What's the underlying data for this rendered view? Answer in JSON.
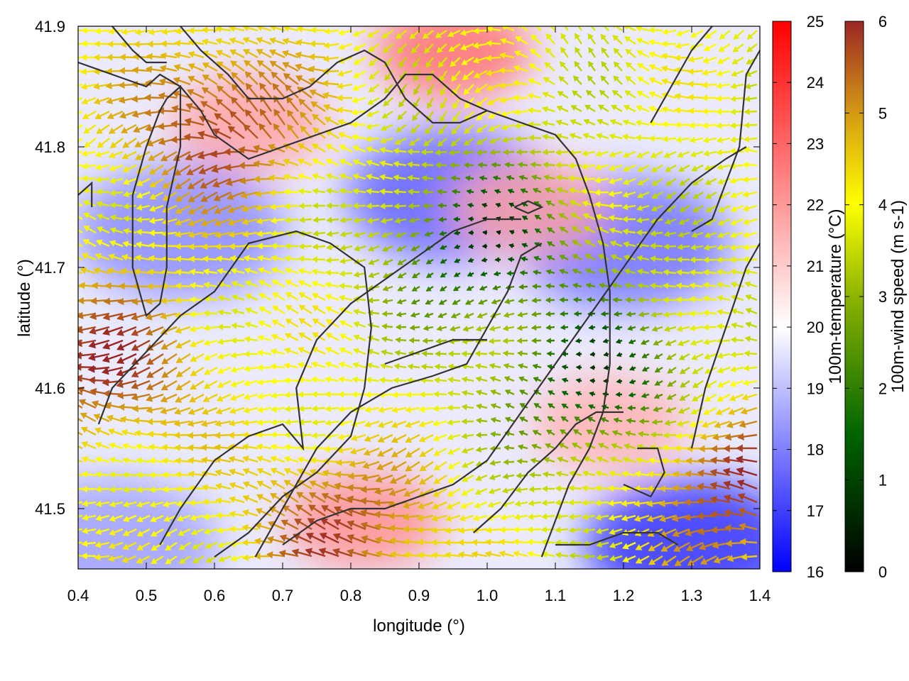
{
  "chart_data": {
    "type": "heatmap",
    "title": "",
    "xlabel": "longitude (°)",
    "ylabel": "latitude (°)",
    "xlim": [
      0.4,
      1.4
    ],
    "ylim": [
      41.45,
      41.9
    ],
    "x_ticks": [
      "0.4",
      "0.5",
      "0.6",
      "0.7",
      "0.8",
      "0.9",
      "1.0",
      "1.1",
      "1.2",
      "1.3",
      "1.4"
    ],
    "y_ticks": [
      "41.5",
      "41.6",
      "41.7",
      "41.8",
      "41.9"
    ],
    "grid": false,
    "layers": [
      "temperature field (background color)",
      "wind vectors (arrows colored by speed)",
      "coastline/terrain contours (dark lines)"
    ],
    "colorbars": [
      {
        "label": "100m-temperature (°C)",
        "range": [
          16,
          25
        ],
        "ticks": [
          "16",
          "17",
          "18",
          "19",
          "20",
          "21",
          "22",
          "23",
          "24",
          "25"
        ],
        "colors": [
          "#0000ff",
          "#ffffff",
          "#ff0000"
        ]
      },
      {
        "label": "100m-wind speed (m s-1)",
        "range": [
          0,
          6
        ],
        "ticks": [
          "0",
          "1",
          "2",
          "3",
          "4",
          "5",
          "6"
        ],
        "colors": [
          "#000000",
          "#006400",
          "#8cb400",
          "#ffff00",
          "#d49a14",
          "#9b2626"
        ]
      }
    ],
    "temperature_features": [
      {
        "kind": "cool",
        "lon": 0.95,
        "lat": 41.76,
        "value": 17.5
      },
      {
        "kind": "cool",
        "lon": 1.2,
        "lat": 41.72,
        "value": 17.8
      },
      {
        "kind": "cool",
        "lon": 0.55,
        "lat": 41.73,
        "value": 18.2
      },
      {
        "kind": "cool",
        "lon": 1.3,
        "lat": 41.47,
        "value": 16.8
      },
      {
        "kind": "cool",
        "lon": 0.45,
        "lat": 41.47,
        "value": 18.5
      },
      {
        "kind": "warm",
        "lon": 0.95,
        "lat": 41.88,
        "value": 22.8
      },
      {
        "kind": "warm",
        "lon": 0.65,
        "lat": 41.82,
        "value": 21.8
      },
      {
        "kind": "warm",
        "lon": 1.18,
        "lat": 41.57,
        "value": 21.5
      },
      {
        "kind": "warm",
        "lon": 0.82,
        "lat": 41.49,
        "value": 22.2
      },
      {
        "kind": "warm",
        "lon": 1.06,
        "lat": 41.75,
        "value": 21.8
      }
    ],
    "wind_features": [
      {
        "kind": "calm",
        "lon": 1.0,
        "lat": 41.72,
        "speed": 0.8
      },
      {
        "kind": "calm",
        "lon": 1.18,
        "lat": 41.6,
        "speed": 0.6
      },
      {
        "kind": "strong",
        "lon": 0.45,
        "lat": 41.62,
        "speed": 5.8
      },
      {
        "kind": "strong",
        "lon": 0.62,
        "lat": 41.82,
        "speed": 5.8
      },
      {
        "kind": "strong",
        "lon": 1.38,
        "lat": 41.52,
        "speed": 5.8
      },
      {
        "kind": "strong",
        "lon": 0.8,
        "lat": 41.48,
        "speed": 5.6
      }
    ],
    "contours": [
      [
        [
          0.4,
          41.76
        ],
        [
          0.42,
          41.77
        ],
        [
          0.42,
          41.75
        ]
      ],
      [
        [
          0.4,
          41.87
        ],
        [
          0.45,
          41.86
        ],
        [
          0.5,
          41.85
        ],
        [
          0.52,
          41.86
        ],
        [
          0.55,
          41.85
        ],
        [
          0.58,
          41.83
        ],
        [
          0.6,
          41.81
        ],
        [
          0.65,
          41.79
        ],
        [
          0.7,
          41.8
        ],
        [
          0.75,
          41.81
        ],
        [
          0.8,
          41.82
        ],
        [
          0.85,
          41.84
        ],
        [
          0.88,
          41.86
        ],
        [
          0.92,
          41.86
        ],
        [
          0.96,
          41.84
        ],
        [
          1.0,
          41.83
        ],
        [
          1.05,
          41.82
        ],
        [
          1.1,
          41.81
        ],
        [
          1.13,
          41.79
        ],
        [
          1.15,
          41.76
        ],
        [
          1.17,
          41.72
        ],
        [
          1.18,
          41.68
        ],
        [
          1.18,
          41.62
        ],
        [
          1.17,
          41.58
        ],
        [
          1.15,
          41.55
        ],
        [
          1.12,
          41.52
        ],
        [
          1.1,
          41.49
        ],
        [
          1.08,
          41.46
        ]
      ],
      [
        [
          0.45,
          41.9
        ],
        [
          0.48,
          41.88
        ],
        [
          0.5,
          41.87
        ],
        [
          0.53,
          41.87
        ]
      ],
      [
        [
          0.55,
          41.9
        ],
        [
          0.58,
          41.88
        ],
        [
          0.62,
          41.86
        ],
        [
          0.65,
          41.84
        ],
        [
          0.7,
          41.84
        ],
        [
          0.74,
          41.85
        ],
        [
          0.78,
          41.87
        ],
        [
          0.82,
          41.88
        ],
        [
          0.85,
          41.87
        ],
        [
          0.88,
          41.84
        ],
        [
          0.92,
          41.82
        ],
        [
          0.96,
          41.82
        ],
        [
          1.0,
          41.83
        ]
      ],
      [
        [
          0.53,
          41.84
        ],
        [
          0.55,
          41.85
        ],
        [
          0.55,
          41.8
        ],
        [
          0.53,
          41.75
        ],
        [
          0.53,
          41.7
        ],
        [
          0.52,
          41.67
        ],
        [
          0.5,
          41.66
        ],
        [
          0.48,
          41.7
        ],
        [
          0.48,
          41.76
        ],
        [
          0.5,
          41.8
        ],
        [
          0.52,
          41.83
        ],
        [
          0.53,
          41.84
        ]
      ],
      [
        [
          0.43,
          41.57
        ],
        [
          0.45,
          41.6
        ],
        [
          0.5,
          41.63
        ],
        [
          0.55,
          41.66
        ],
        [
          0.6,
          41.68
        ],
        [
          0.65,
          41.72
        ],
        [
          0.72,
          41.73
        ],
        [
          0.77,
          41.72
        ],
        [
          0.82,
          41.7
        ],
        [
          0.83,
          41.65
        ],
        [
          0.82,
          41.6
        ],
        [
          0.8,
          41.56
        ],
        [
          0.75,
          41.53
        ],
        [
          0.7,
          41.51
        ],
        [
          0.65,
          41.48
        ],
        [
          0.6,
          41.46
        ]
      ],
      [
        [
          0.52,
          41.47
        ],
        [
          0.55,
          41.5
        ],
        [
          0.6,
          41.54
        ],
        [
          0.65,
          41.56
        ],
        [
          0.7,
          41.57
        ],
        [
          0.73,
          41.55
        ],
        [
          0.72,
          41.6
        ],
        [
          0.75,
          41.64
        ],
        [
          0.8,
          41.67
        ],
        [
          0.85,
          41.69
        ],
        [
          0.9,
          41.71
        ],
        [
          0.95,
          41.73
        ],
        [
          1.0,
          41.74
        ],
        [
          1.05,
          41.74
        ]
      ],
      [
        [
          0.66,
          41.46
        ],
        [
          0.7,
          41.5
        ],
        [
          0.75,
          41.55
        ],
        [
          0.8,
          41.58
        ],
        [
          0.86,
          41.6
        ],
        [
          0.92,
          41.61
        ],
        [
          0.97,
          41.62
        ],
        [
          1.0,
          41.65
        ],
        [
          1.03,
          41.68
        ],
        [
          1.05,
          41.71
        ],
        [
          1.08,
          41.72
        ]
      ],
      [
        [
          0.7,
          41.47
        ],
        [
          0.75,
          41.49
        ],
        [
          0.8,
          41.5
        ],
        [
          0.85,
          41.5
        ],
        [
          0.9,
          41.51
        ],
        [
          0.95,
          41.52
        ],
        [
          1.0,
          41.54
        ],
        [
          1.05,
          41.58
        ],
        [
          1.1,
          41.62
        ],
        [
          1.15,
          41.66
        ],
        [
          1.2,
          41.7
        ],
        [
          1.25,
          41.74
        ],
        [
          1.3,
          41.77
        ],
        [
          1.35,
          41.79
        ],
        [
          1.38,
          41.8
        ]
      ],
      [
        [
          0.98,
          41.48
        ],
        [
          1.02,
          41.5
        ],
        [
          1.06,
          41.53
        ],
        [
          1.1,
          41.55
        ],
        [
          1.13,
          41.57
        ],
        [
          1.16,
          41.58
        ],
        [
          1.2,
          41.58
        ]
      ],
      [
        [
          1.2,
          41.52
        ],
        [
          1.24,
          41.51
        ],
        [
          1.26,
          41.53
        ],
        [
          1.25,
          41.55
        ],
        [
          1.22,
          41.55
        ]
      ],
      [
        [
          1.1,
          41.47
        ],
        [
          1.15,
          41.47
        ],
        [
          1.2,
          41.48
        ],
        [
          1.25,
          41.48
        ],
        [
          1.28,
          41.47
        ]
      ],
      [
        [
          1.3,
          41.55
        ],
        [
          1.32,
          41.6
        ],
        [
          1.35,
          41.65
        ],
        [
          1.38,
          41.7
        ],
        [
          1.4,
          41.72
        ]
      ],
      [
        [
          1.3,
          41.73
        ],
        [
          1.33,
          41.74
        ],
        [
          1.35,
          41.77
        ],
        [
          1.37,
          41.8
        ],
        [
          1.38,
          41.86
        ],
        [
          1.4,
          41.88
        ]
      ],
      [
        [
          1.04,
          41.75
        ],
        [
          1.06,
          41.755
        ],
        [
          1.08,
          41.75
        ],
        [
          1.06,
          41.745
        ],
        [
          1.04,
          41.75
        ]
      ],
      [
        [
          1.24,
          41.82
        ],
        [
          1.27,
          41.85
        ],
        [
          1.3,
          41.88
        ],
        [
          1.33,
          41.9
        ]
      ],
      [
        [
          0.85,
          41.62
        ],
        [
          0.9,
          41.63
        ],
        [
          0.95,
          41.64
        ],
        [
          1.0,
          41.64
        ]
      ]
    ]
  }
}
